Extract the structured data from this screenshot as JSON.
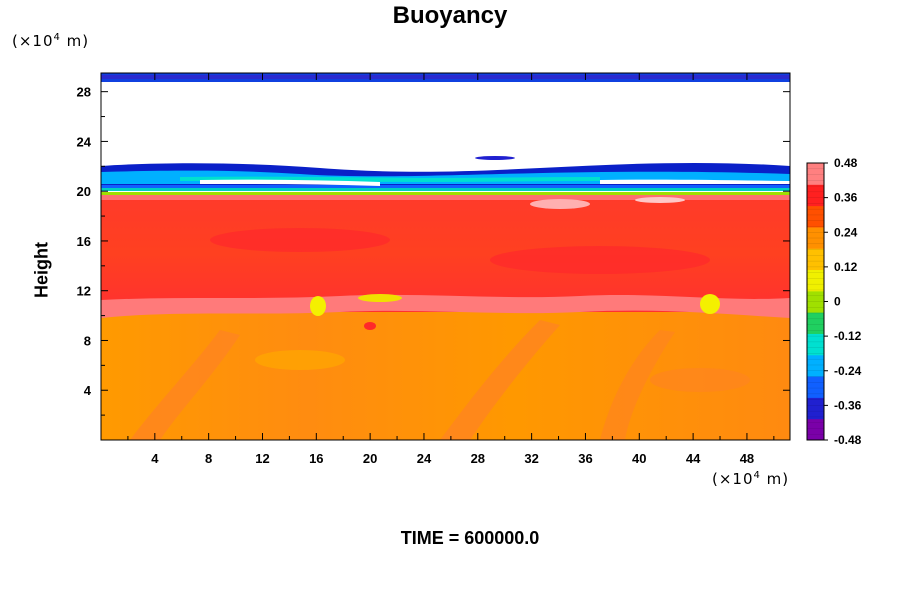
{
  "chart_data": {
    "type": "heatmap",
    "title": "Buoyancy",
    "ylabel": "Height",
    "y_unit_prefix": "(×10",
    "y_unit_exp": "4",
    "y_unit_suffix": " m)",
    "x_unit_prefix": "(×10",
    "x_unit_exp": "4",
    "x_unit_suffix": " m)",
    "footer": "TIME = 600000.0",
    "xlim": [
      0,
      51.2
    ],
    "ylim": [
      0,
      29.5
    ],
    "x_ticks": [
      4,
      8,
      12,
      16,
      20,
      24,
      28,
      32,
      36,
      40,
      44,
      48
    ],
    "y_ticks": [
      4,
      8,
      12,
      16,
      20,
      24,
      28
    ],
    "colorbar": {
      "range": [
        -0.48,
        0.48
      ],
      "ticks": [
        0.48,
        0.36,
        0.24,
        0.12,
        0,
        -0.12,
        -0.24,
        -0.36,
        -0.48
      ],
      "tick_labels": [
        "0.48",
        "0.36",
        "0.24",
        "0.12",
        "0",
        "-0.12",
        "-0.24",
        "-0.36",
        "-0.48"
      ],
      "colors": [
        "#7a00a8",
        "#2020d0",
        "#1060ff",
        "#00b0ff",
        "#00e0d0",
        "#20d060",
        "#a0e000",
        "#f0f000",
        "#ffc000",
        "#ff9000",
        "#ff5000",
        "#ff2020",
        "#ff8080"
      ]
    },
    "layers": [
      {
        "name": "",
        "y_range": [
          0,
          10.5
        ],
        "value": 0.26
      },
      {
        "name": "",
        "y_range": [
          10.5,
          20
        ],
        "value": 0.38
      },
      {
        "name": "",
        "y_range": [
          20,
          20.6
        ],
        "value": 0.1
      },
      {
        "name": "",
        "y_range": [
          20.6,
          22.5
        ],
        "value": -0.3
      },
      {
        "name": "",
        "y_range": [
          22.5,
          29
        ],
        "value": null
      },
      {
        "name": "",
        "y_range": [
          29,
          29.5
        ],
        "value": -0.42
      }
    ],
    "grid": false,
    "legend": "colorbar-right"
  }
}
